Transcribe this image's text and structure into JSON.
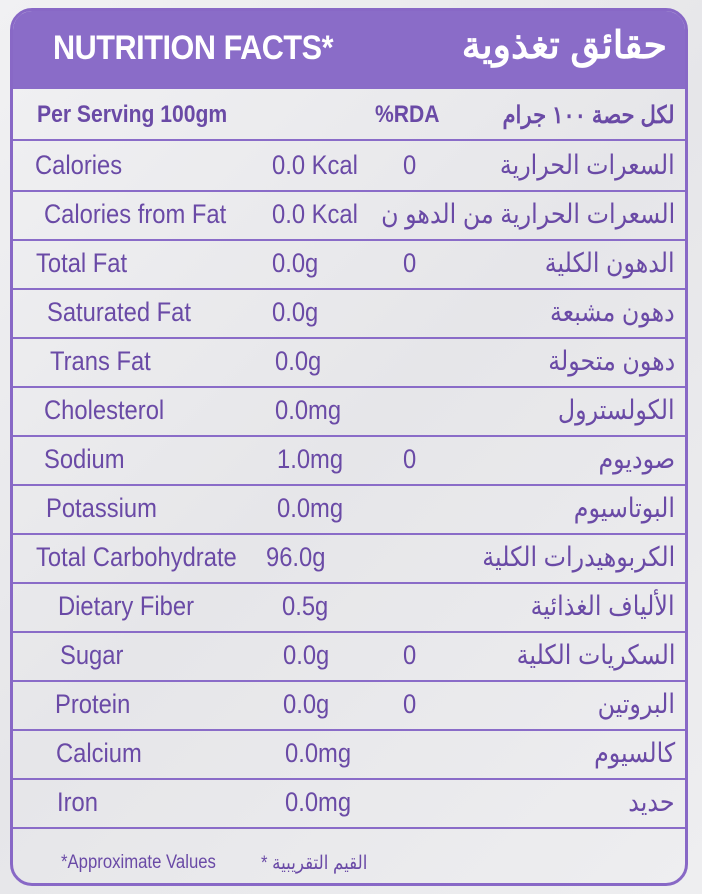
{
  "header": {
    "title_en": "NUTRITION FACTS*",
    "title_ar": "حقائق تغذوية"
  },
  "serving": {
    "label_en": "Per Serving 100gm",
    "rda": "%RDA",
    "label_ar": "لكل حصة ١٠٠ جرام"
  },
  "rows": [
    {
      "name": "Calories",
      "value": "0.0 Kcal",
      "rda": "0",
      "ar": "السعرات الحرارية"
    },
    {
      "name": "Calories from Fat",
      "value": "0.0 Kcal",
      "rda": "",
      "ar": "السعرات الحرارية من الدهو ن"
    },
    {
      "name": "Total Fat",
      "value": "0.0g",
      "rda": "0",
      "ar": "الدهون الكلية"
    },
    {
      "name": "Saturated Fat",
      "value": "0.0g",
      "rda": "",
      "ar": "دهون مشبعة"
    },
    {
      "name": "Trans Fat",
      "value": "0.0g",
      "rda": "",
      "ar": "دهون متحولة"
    },
    {
      "name": "Cholesterol",
      "value": "0.0mg",
      "rda": "",
      "ar": "الكولسترول"
    },
    {
      "name": "Sodium",
      "value": "1.0mg",
      "rda": "0",
      "ar": "صوديوم"
    },
    {
      "name": "Potassium",
      "value": "0.0mg",
      "rda": "",
      "ar": "البوتاسيوم"
    },
    {
      "name": "Total Carbohydrate",
      "value": "96.0g",
      "rda": "",
      "ar": "الكربوهيدرات الكلية"
    },
    {
      "name": "Dietary Fiber",
      "value": "0.5g",
      "rda": "",
      "ar": "الألياف الغذائية"
    },
    {
      "name": "Sugar",
      "value": "0.0g",
      "rda": "0",
      "ar": "السكريات الكلية"
    },
    {
      "name": "Protein",
      "value": "0.0g",
      "rda": "0",
      "ar": "البروتين"
    },
    {
      "name": "Calcium",
      "value": "0.0mg",
      "rda": "",
      "ar": "كالسيوم"
    },
    {
      "name": "Iron",
      "value": "0.0mg",
      "rda": "",
      "ar": "حديد"
    }
  ],
  "footer": {
    "note_en": "*Approximate Values",
    "note_ar": "* القيم التقريبية"
  },
  "colors": {
    "accent": "#8a6cc8",
    "text": "#6a4aa6",
    "background": "#ececee"
  }
}
